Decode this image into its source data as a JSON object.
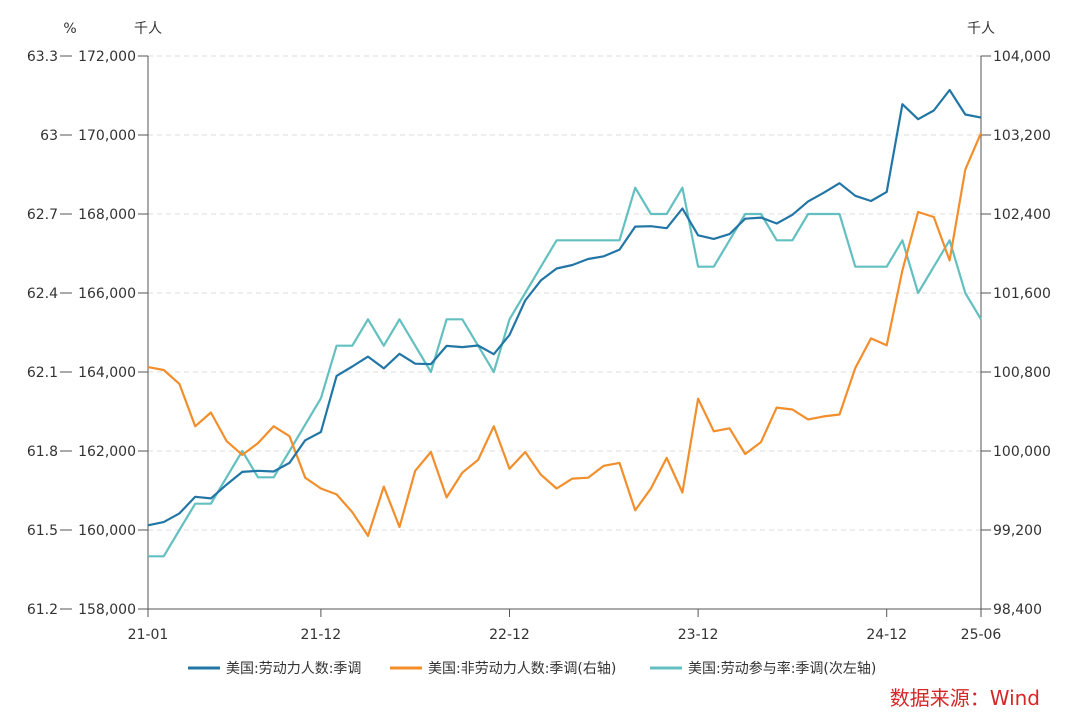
{
  "chart_data": {
    "type": "line",
    "source": "数据来源：Wind",
    "units": {
      "pct": "%",
      "left": "千人",
      "right": "千人"
    },
    "axes": {
      "y_pct": {
        "min": 61.2,
        "max": 63.3,
        "ticks": [
          "61.2",
          "61.5",
          "61.8",
          "62.1",
          "62.4",
          "62.7",
          "63",
          "63.3"
        ]
      },
      "y_left": {
        "min": 158000,
        "max": 172000,
        "ticks": [
          "158,000",
          "160,000",
          "162,000",
          "164,000",
          "166,000",
          "168,000",
          "170,000",
          "172,000"
        ]
      },
      "y_right": {
        "min": 98400,
        "max": 104000,
        "ticks": [
          "98,400",
          "99,200",
          "100,000",
          "100,800",
          "101,600",
          "102,400",
          "103,200",
          "104,000"
        ]
      },
      "x_ticks": [
        "21-01",
        "21-12",
        "22-12",
        "23-12",
        "24-12",
        "25-06"
      ]
    },
    "grid": true,
    "colors": {
      "labor_force": "#2276a6",
      "not_in_lf": "#f28e2b",
      "participation": "#64c0c0",
      "axis": "#555555",
      "grid": "#dddddd",
      "source": "#d62728"
    },
    "series": [
      {
        "name": "美国:劳动力人数:季调",
        "axis": "left",
        "values": [
          160120,
          160200,
          160420,
          160840,
          160800,
          161150,
          161470,
          161500,
          161480,
          161700,
          162270,
          162480,
          163900,
          164140,
          164390,
          164090,
          164460,
          164210,
          164200,
          164660,
          164630,
          164670,
          164450,
          164940,
          165810,
          166320,
          166620,
          166710,
          166860,
          166930,
          167100,
          167680,
          167690,
          167640,
          168140,
          167460,
          167370,
          167490,
          167880,
          167910,
          167760,
          167980,
          168320,
          168540,
          168780,
          168460,
          168330,
          168560,
          170780,
          170400,
          170620,
          171140,
          170520,
          170440
        ]
      },
      {
        "name": "美国:非劳动力人数:季调(右轴)",
        "axis": "right",
        "values": [
          100850,
          100820,
          100680,
          100250,
          100390,
          100100,
          99960,
          100080,
          100250,
          100150,
          99730,
          99620,
          99560,
          99380,
          99140,
          99640,
          99230,
          99800,
          99990,
          99530,
          99780,
          99910,
          100250,
          99820,
          99990,
          99760,
          99620,
          99720,
          99730,
          99850,
          99880,
          99400,
          99620,
          99930,
          99580,
          100530,
          100200,
          100230,
          99970,
          100090,
          100440,
          100420,
          100320,
          100350,
          100370,
          100840,
          101140,
          101070,
          101830,
          102420,
          102370,
          101930,
          102850,
          103220
        ]
      },
      {
        "name": "美国:劳动参与率:季调(次左轴)",
        "axis": "pct",
        "values": [
          61.4,
          61.4,
          61.5,
          61.6,
          61.6,
          61.7,
          61.8,
          61.7,
          61.7,
          61.8,
          61.9,
          62.0,
          62.2,
          62.2,
          62.3,
          62.2,
          62.3,
          62.2,
          62.1,
          62.3,
          62.3,
          62.2,
          62.1,
          62.3,
          62.4,
          62.5,
          62.6,
          62.6,
          62.6,
          62.6,
          62.6,
          62.8,
          62.7,
          62.7,
          62.8,
          62.5,
          62.5,
          62.6,
          62.7,
          62.7,
          62.6,
          62.6,
          62.7,
          62.7,
          62.7,
          62.5,
          62.5,
          62.5,
          62.6,
          62.4,
          62.5,
          62.6,
          62.4,
          62.3
        ]
      }
    ]
  }
}
